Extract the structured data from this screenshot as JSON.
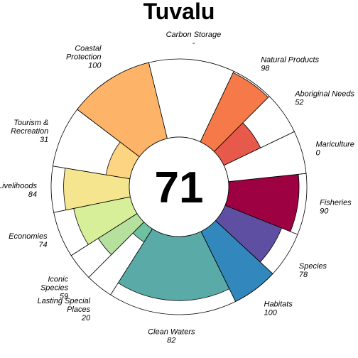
{
  "chart_data": {
    "type": "pie",
    "subtype": "flower-plot",
    "title": "Tuvalu",
    "center_value": "71",
    "max_value": 100,
    "petals": [
      {
        "name": "Fisheries",
        "display": [
          "Fisheries"
        ],
        "value": 90,
        "value_label": "90",
        "color": "#9e0142",
        "weight": 1
      },
      {
        "name": "Species",
        "display": [
          "Species"
        ],
        "value": 78,
        "value_label": "78",
        "color": "#5e4fa2",
        "weight": 0.75
      },
      {
        "name": "Habitats",
        "display": [
          "Habitats"
        ],
        "value": 100,
        "value_label": "100",
        "color": "#3288bd",
        "weight": 0.75
      },
      {
        "name": "Clean Waters",
        "display": [
          "Clean Waters"
        ],
        "value": 82,
        "value_label": "82",
        "color": "#5aaba8",
        "weight": 2.1
      },
      {
        "name": "Lasting Special Places",
        "display": [
          "Lasting Special",
          "Places"
        ],
        "value": 20,
        "value_label": "20",
        "color": "#6ec2a1",
        "weight": 0.45
      },
      {
        "name": "Iconic Species",
        "display": [
          "Iconic",
          "Species"
        ],
        "value": 59,
        "value_label": "59",
        "color": "#b5e09e",
        "weight": 0.45
      },
      {
        "name": "Economies",
        "display": [
          "Economies"
        ],
        "value": 74,
        "value_label": "74",
        "color": "#d8ef9a",
        "weight": 0.75
      },
      {
        "name": "Livelihoods",
        "display": [
          "Livelihoods"
        ],
        "value": 84,
        "value_label": "84",
        "color": "#f6e58f",
        "weight": 0.75
      },
      {
        "name": "Tourism & Recreation",
        "display": [
          "Tourism &",
          "Recreation"
        ],
        "value": 31,
        "value_label": "31",
        "color": "#fdd582",
        "weight": 1
      },
      {
        "name": "Coastal Protection",
        "display": [
          "Coastal",
          "Protection"
        ],
        "value": 100,
        "value_label": "100",
        "color": "#fdb468",
        "weight": 1.4
      },
      {
        "name": "Carbon Storage",
        "display": [
          "Carbon Storage"
        ],
        "value": null,
        "value_label": "-",
        "color": "#ffffff",
        "weight": 1.4
      },
      {
        "name": "Natural Products",
        "display": [
          "Natural Products"
        ],
        "value": 98,
        "value_label": "98",
        "color": "#f67a49",
        "weight": 0.7
      },
      {
        "name": "Aboriginal Needs",
        "display": [
          "Aboriginal Needs"
        ],
        "value": 52,
        "value_label": "52",
        "color": "#e75a4b",
        "weight": 0.7
      },
      {
        "name": "Mariculture",
        "display": [
          "Mariculture"
        ],
        "value": 0,
        "value_label": "0",
        "color": "#d53e4f",
        "weight": 0.7
      }
    ]
  }
}
